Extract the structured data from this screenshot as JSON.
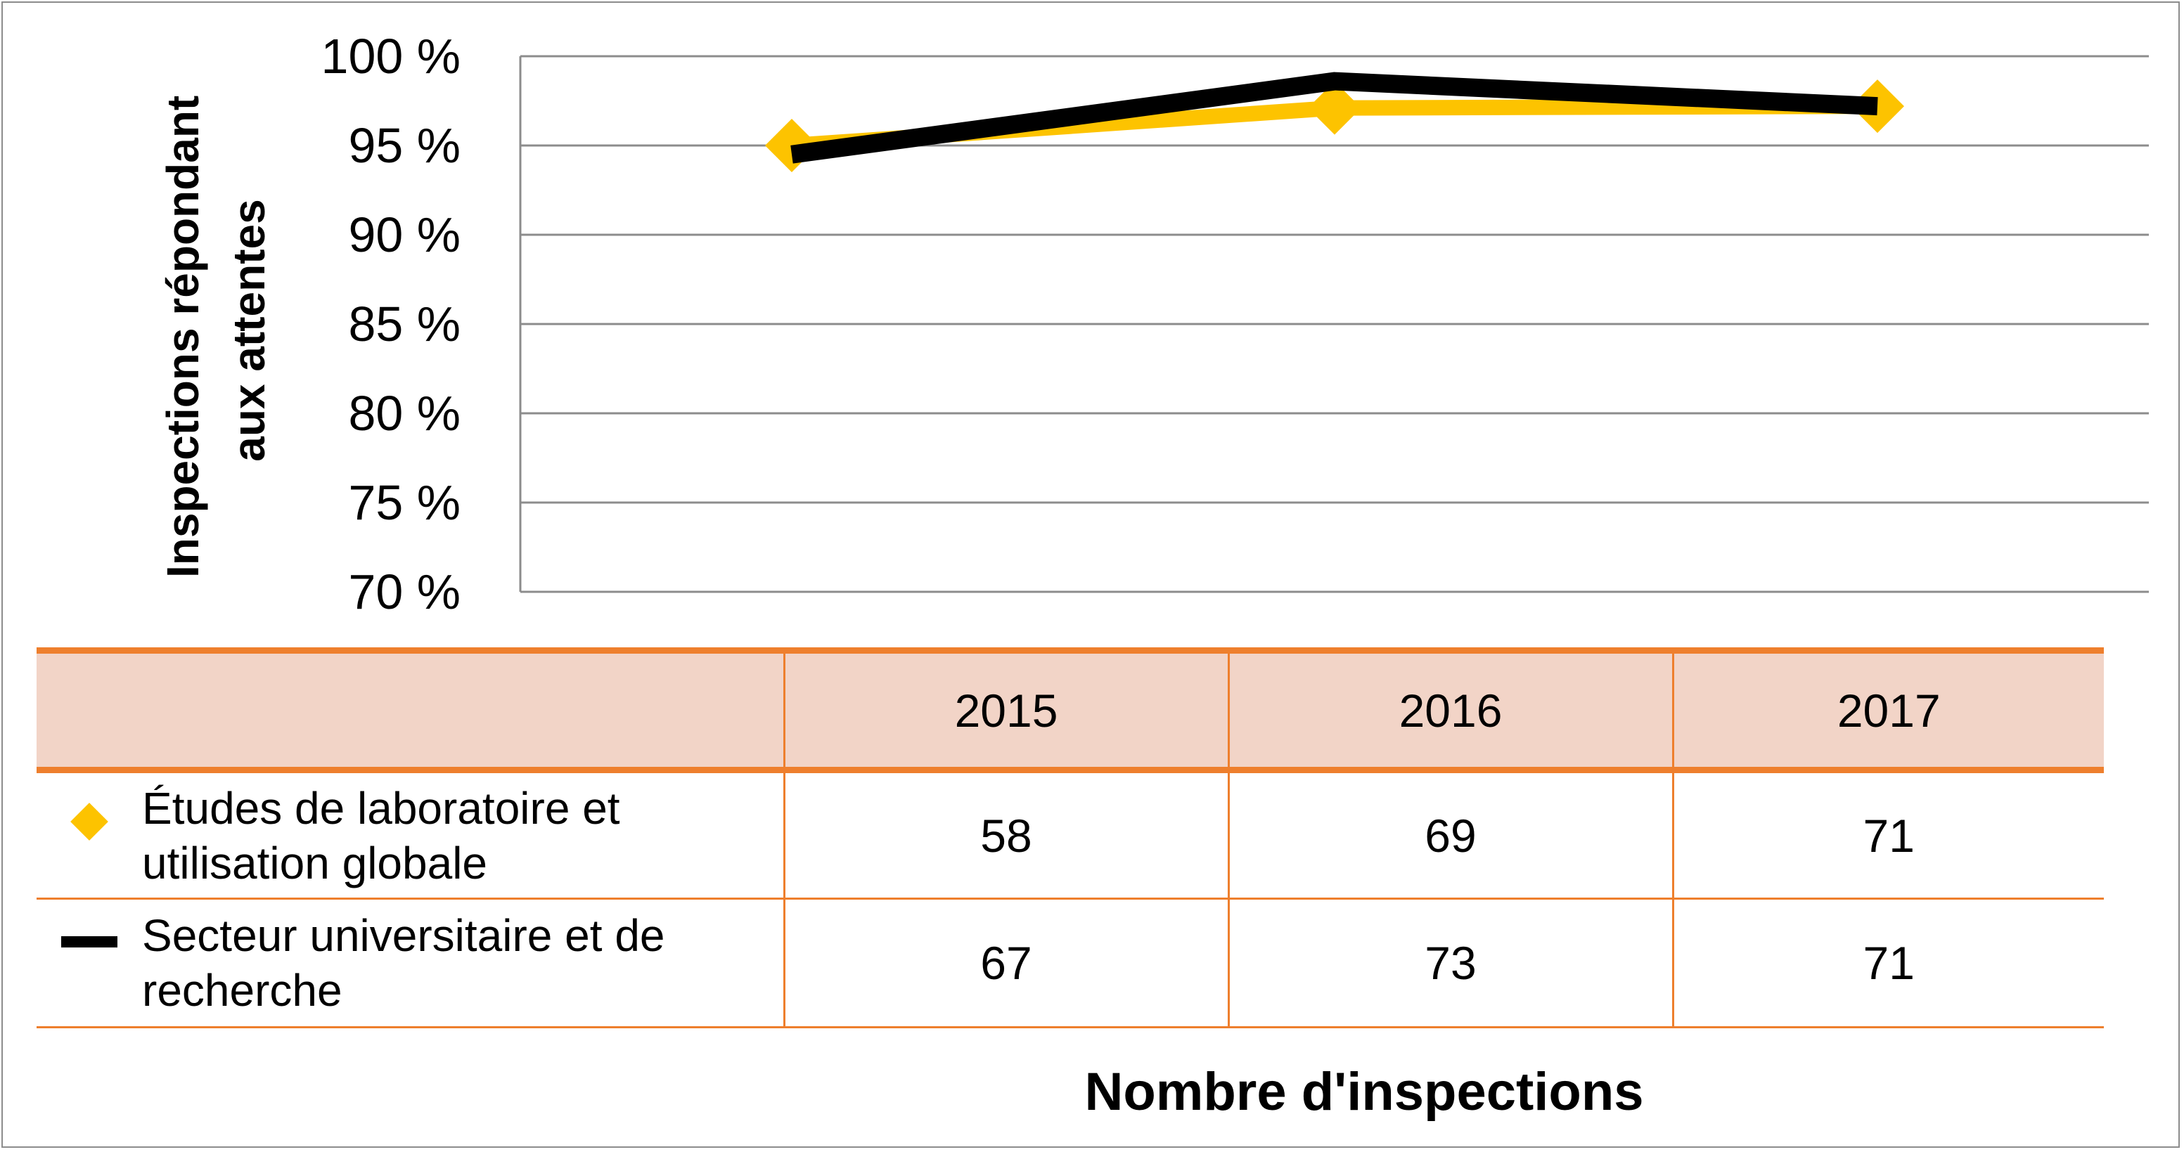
{
  "chart_data": {
    "type": "line",
    "categories": [
      "2015",
      "2016",
      "2017"
    ],
    "ylabel": "Inspections répondant aux attentes",
    "xlabel": "Nombre d'inspections",
    "ylim": [
      70,
      100
    ],
    "yticks": [
      "100 %",
      "95 %",
      "90 %",
      "85 %",
      "80 %",
      "75 %",
      "70 %"
    ],
    "grid": true,
    "series": [
      {
        "name": "Études de laboratoire et utilisation globale",
        "values": [
          95.0,
          97.1,
          97.2
        ],
        "color": "#fdc300",
        "marker": "diamond",
        "counts": [
          "58",
          "69",
          "71"
        ]
      },
      {
        "name": "Secteur universitaire et de recherche",
        "values": [
          94.5,
          98.6,
          97.2
        ],
        "color": "#000000",
        "marker": "none",
        "counts": [
          "67",
          "73",
          "71"
        ]
      }
    ]
  }
}
